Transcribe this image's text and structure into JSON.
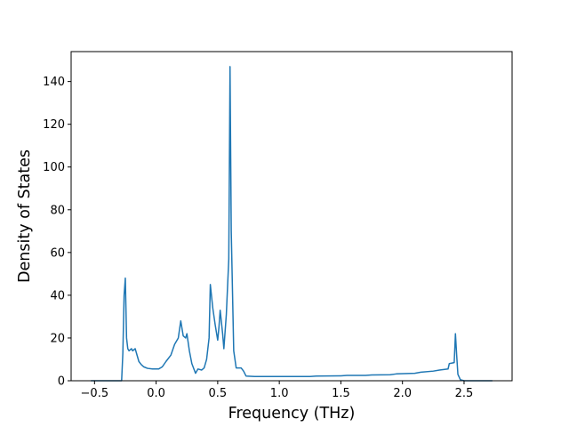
{
  "chart_data": {
    "type": "line",
    "title": "",
    "xlabel": "Frequency (THz)",
    "ylabel": "Density of States",
    "xlim": [
      -0.69,
      2.89
    ],
    "ylim": [
      0,
      154
    ],
    "xticks": [
      -0.5,
      0.0,
      0.5,
      1.0,
      1.5,
      2.0,
      2.5
    ],
    "xtick_labels": [
      "−0.5",
      "0.0",
      "0.5",
      "1.0",
      "1.5",
      "2.0",
      "2.5"
    ],
    "yticks": [
      0,
      20,
      40,
      60,
      80,
      100,
      120,
      140
    ],
    "ytick_labels": [
      "0",
      "20",
      "40",
      "60",
      "80",
      "100",
      "120",
      "140"
    ],
    "grid": false,
    "series": [
      {
        "name": "",
        "color": "#1f77b4",
        "points": [
          [
            -0.53,
            0
          ],
          [
            -0.4,
            0
          ],
          [
            -0.28,
            0
          ],
          [
            -0.27,
            13
          ],
          [
            -0.26,
            40
          ],
          [
            -0.25,
            48
          ],
          [
            -0.24,
            20
          ],
          [
            -0.23,
            15
          ],
          [
            -0.22,
            14
          ],
          [
            -0.2,
            15
          ],
          [
            -0.19,
            14
          ],
          [
            -0.17,
            15
          ],
          [
            -0.16,
            13
          ],
          [
            -0.14,
            9
          ],
          [
            -0.12,
            7.5
          ],
          [
            -0.1,
            6.5
          ],
          [
            -0.07,
            5.8
          ],
          [
            -0.03,
            5.5
          ],
          [
            0.02,
            5.5
          ],
          [
            0.05,
            6.5
          ],
          [
            0.08,
            9
          ],
          [
            0.12,
            12
          ],
          [
            0.15,
            17
          ],
          [
            0.18,
            20
          ],
          [
            0.2,
            28
          ],
          [
            0.22,
            21
          ],
          [
            0.24,
            20
          ],
          [
            0.25,
            22
          ],
          [
            0.27,
            14
          ],
          [
            0.29,
            8
          ],
          [
            0.31,
            5
          ],
          [
            0.32,
            3.5
          ],
          [
            0.34,
            5.5
          ],
          [
            0.37,
            5
          ],
          [
            0.39,
            6
          ],
          [
            0.41,
            10
          ],
          [
            0.43,
            20
          ],
          [
            0.44,
            45
          ],
          [
            0.46,
            34
          ],
          [
            0.48,
            26
          ],
          [
            0.5,
            19
          ],
          [
            0.51,
            25
          ],
          [
            0.52,
            33
          ],
          [
            0.54,
            22
          ],
          [
            0.55,
            15
          ],
          [
            0.57,
            31
          ],
          [
            0.59,
            57
          ],
          [
            0.6,
            147
          ],
          [
            0.61,
            70
          ],
          [
            0.63,
            14
          ],
          [
            0.65,
            6
          ],
          [
            0.69,
            6
          ],
          [
            0.71,
            4.5
          ],
          [
            0.73,
            2.2
          ],
          [
            0.8,
            2
          ],
          [
            1.0,
            2
          ],
          [
            1.25,
            2
          ],
          [
            1.3,
            2.2
          ],
          [
            1.5,
            2.3
          ],
          [
            1.55,
            2.5
          ],
          [
            1.7,
            2.5
          ],
          [
            1.75,
            2.7
          ],
          [
            1.9,
            2.8
          ],
          [
            1.95,
            3.2
          ],
          [
            2.1,
            3.5
          ],
          [
            2.15,
            4
          ],
          [
            2.25,
            4.5
          ],
          [
            2.3,
            5
          ],
          [
            2.37,
            5.5
          ],
          [
            2.38,
            8
          ],
          [
            2.42,
            8.5
          ],
          [
            2.43,
            22
          ],
          [
            2.44,
            12
          ],
          [
            2.45,
            3
          ],
          [
            2.47,
            0.5
          ],
          [
            2.5,
            0
          ],
          [
            2.73,
            0
          ]
        ]
      }
    ]
  }
}
